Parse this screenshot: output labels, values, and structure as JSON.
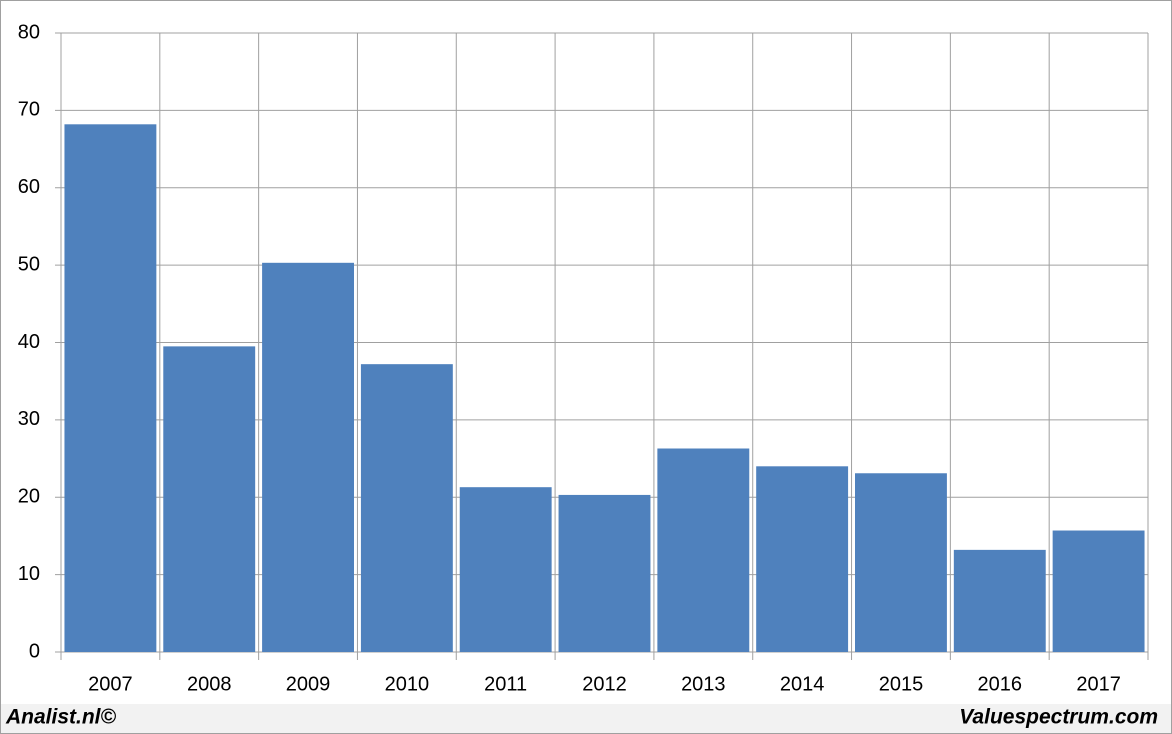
{
  "chart_data": {
    "type": "bar",
    "categories": [
      "2007",
      "2008",
      "2009",
      "2010",
      "2011",
      "2012",
      "2013",
      "2014",
      "2015",
      "2016",
      "2017"
    ],
    "values": [
      68.2,
      39.5,
      50.3,
      37.2,
      21.3,
      20.3,
      26.3,
      24.0,
      23.1,
      13.2,
      15.7
    ],
    "color": "#4f81bd",
    "ylim": [
      0,
      80
    ],
    "yticks": [
      0,
      10,
      20,
      30,
      40,
      50,
      60,
      70,
      80
    ],
    "grid": true
  },
  "footer": {
    "left": "Analist.nl©",
    "right": "Valuespectrum.com"
  }
}
